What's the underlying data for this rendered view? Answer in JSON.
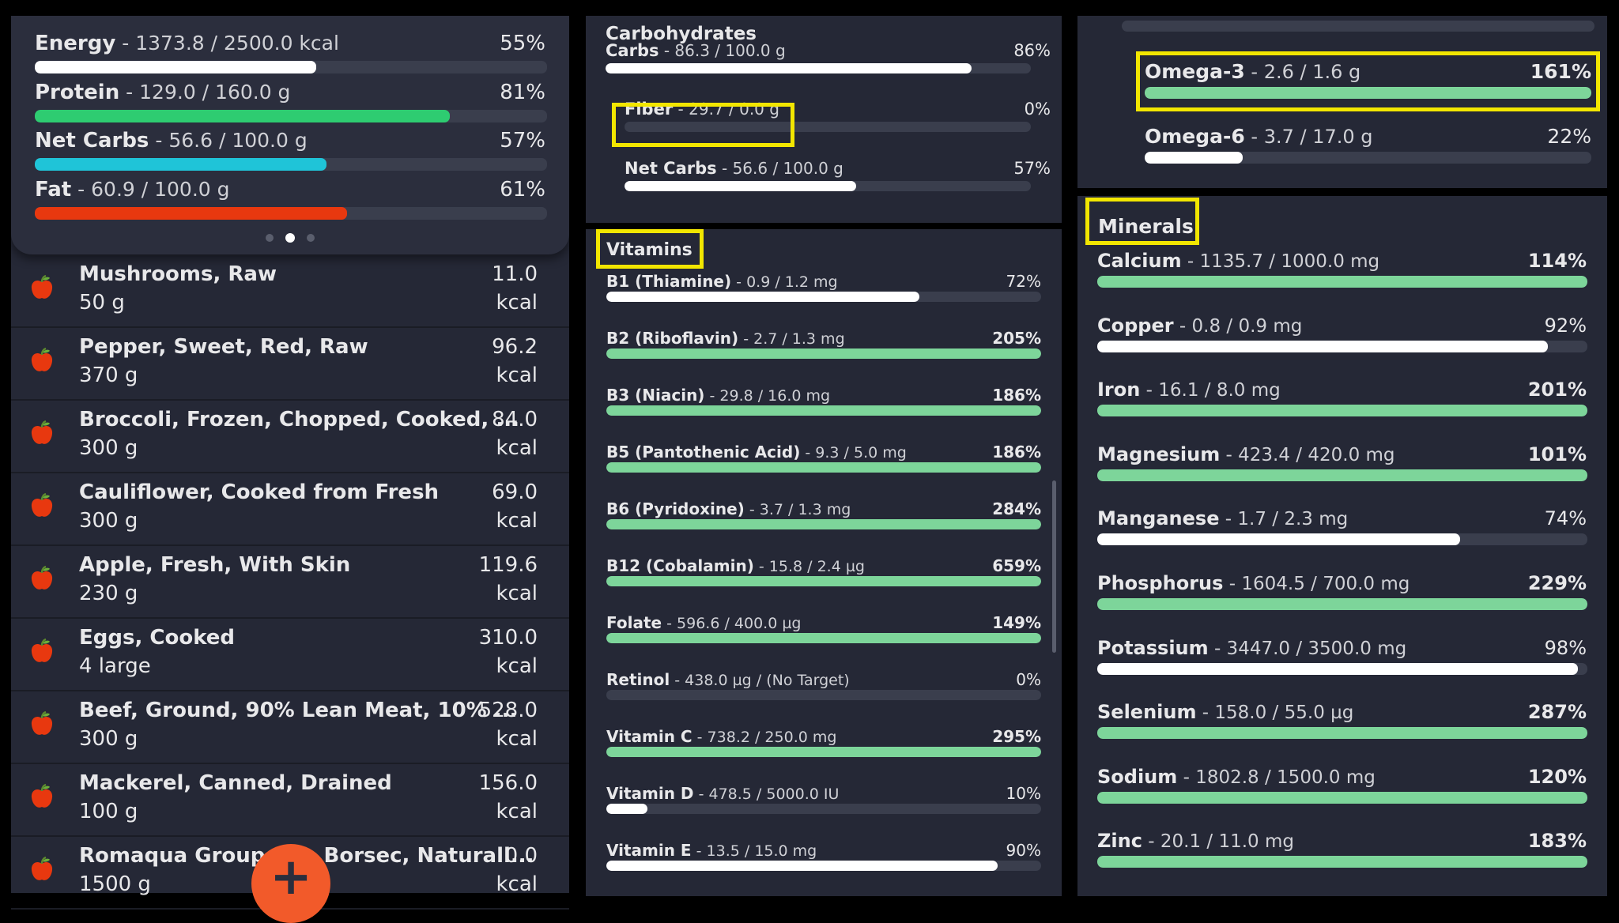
{
  "colors": {
    "white": "#ffffff",
    "green": "#2ecc71",
    "cyan": "#1fc4d8",
    "red": "#e8380f",
    "mint": "#7dd59a",
    "fab": "#f25a2a"
  },
  "summary": {
    "rows": [
      {
        "name": "Energy",
        "detail": " - 1373.8 / 2500.0 kcal",
        "pct": "55%",
        "value": 0.55,
        "color": "white"
      },
      {
        "name": "Protein",
        "detail": " - 129.0 / 160.0 g",
        "pct": "81%",
        "value": 0.81,
        "color": "green"
      },
      {
        "name": "Net Carbs",
        "detail": " - 56.6 / 100.0 g",
        "pct": "57%",
        "value": 0.57,
        "color": "cyan"
      },
      {
        "name": "Fat",
        "detail": " - 60.9 / 100.0 g",
        "pct": "61%",
        "value": 0.61,
        "color": "red"
      }
    ]
  },
  "foods": [
    {
      "name": "Mushrooms, Raw",
      "qty": "50 g",
      "cal": "11.0",
      "unit": "kcal"
    },
    {
      "name": "Pepper, Sweet, Red, Raw",
      "qty": "370 g",
      "cal": "96.2",
      "unit": "kcal"
    },
    {
      "name": "Broccoli, Frozen, Chopped, Cooked, ...",
      "qty": "300 g",
      "cal": "84.0",
      "unit": "kcal"
    },
    {
      "name": "Cauliflower, Cooked from Fresh",
      "qty": "300 g",
      "cal": "69.0",
      "unit": "kcal"
    },
    {
      "name": "Apple, Fresh, With Skin",
      "qty": "230 g",
      "cal": "119.6",
      "unit": "kcal"
    },
    {
      "name": "Eggs, Cooked",
      "qty": "4 large",
      "cal": "310.0",
      "unit": "kcal"
    },
    {
      "name": "Beef, Ground, 90% Lean Meat, 10% ...",
      "qty": "300 g",
      "cal": "528.0",
      "unit": "kcal"
    },
    {
      "name": "Mackerel, Canned, Drained",
      "qty": "100 g",
      "cal": "156.0",
      "unit": "kcal"
    },
    {
      "name": "Romaqua Group S.a. Borsec, Naturall...",
      "qty": "1500 g",
      "cal": "0.0",
      "unit": "kcal"
    }
  ],
  "fab": {
    "symbol": "+"
  },
  "carbs": {
    "title": "Carbohydrates",
    "rows": [
      {
        "name": "Carbs",
        "detail": " - 86.3 / 100.0 g",
        "pct": "86%",
        "value": 0.86,
        "color": "white"
      },
      {
        "name": "Fiber",
        "detail": " - 29.7 / 0.0 g",
        "pct": "0%",
        "value": 0,
        "color": "white"
      },
      {
        "name": "Net Carbs",
        "detail": " - 56.6 / 100.0 g",
        "pct": "57%",
        "value": 0.57,
        "color": "white"
      }
    ]
  },
  "vitamins": {
    "title": "Vitamins",
    "rows": [
      {
        "name": "B1 (Thiamine)",
        "detail": " - 0.9 / 1.2 mg",
        "pct": "72%",
        "value": 0.72,
        "color": "white",
        "bold": false
      },
      {
        "name": "B2 (Riboflavin)",
        "detail": " - 2.7 / 1.3 mg",
        "pct": "205%",
        "value": 1,
        "color": "mint",
        "bold": true
      },
      {
        "name": "B3 (Niacin)",
        "detail": " - 29.8 / 16.0 mg",
        "pct": "186%",
        "value": 1,
        "color": "mint",
        "bold": true
      },
      {
        "name": "B5 (Pantothenic Acid)",
        "detail": " - 9.3 / 5.0 mg",
        "pct": "186%",
        "value": 1,
        "color": "mint",
        "bold": true
      },
      {
        "name": "B6 (Pyridoxine)",
        "detail": " - 3.7 / 1.3 mg",
        "pct": "284%",
        "value": 1,
        "color": "mint",
        "bold": true
      },
      {
        "name": "B12 (Cobalamin)",
        "detail": " - 15.8 / 2.4 µg",
        "pct": "659%",
        "value": 1,
        "color": "mint",
        "bold": true
      },
      {
        "name": "Folate",
        "detail": " - 596.6 / 400.0 µg",
        "pct": "149%",
        "value": 1,
        "color": "mint",
        "bold": true
      },
      {
        "name": "Retinol",
        "detail": " - 438.0 µg / (No Target)",
        "pct": "0%",
        "value": 0,
        "color": "white",
        "bold": false
      },
      {
        "name": "Vitamin C",
        "detail": " - 738.2 / 250.0 mg",
        "pct": "295%",
        "value": 1,
        "color": "mint",
        "bold": true
      },
      {
        "name": "Vitamin D",
        "detail": " - 478.5 / 5000.0 IU",
        "pct": "10%",
        "value": 0.095,
        "color": "white",
        "bold": false
      },
      {
        "name": "Vitamin E",
        "detail": " - 13.5 / 15.0 mg",
        "pct": "90%",
        "value": 0.9,
        "color": "white",
        "bold": false
      }
    ]
  },
  "omega": {
    "rows": [
      {
        "name": "Omega-3",
        "detail": " - 2.6 / 1.6 g",
        "pct": "161%",
        "value": 1,
        "color": "mint",
        "bold": true
      },
      {
        "name": "Omega-6",
        "detail": " - 3.7 / 17.0 g",
        "pct": "22%",
        "value": 0.22,
        "color": "white",
        "bold": false
      }
    ]
  },
  "minerals": {
    "title": "Minerals",
    "rows": [
      {
        "name": "Calcium",
        "detail": " - 1135.7 / 1000.0 mg",
        "pct": "114%",
        "value": 1,
        "color": "mint",
        "bold": true
      },
      {
        "name": "Copper",
        "detail": " - 0.8 / 0.9 mg",
        "pct": "92%",
        "value": 0.92,
        "color": "white",
        "bold": false
      },
      {
        "name": "Iron",
        "detail": " - 16.1 / 8.0 mg",
        "pct": "201%",
        "value": 1,
        "color": "mint",
        "bold": true
      },
      {
        "name": "Magnesium",
        "detail": " - 423.4 / 420.0 mg",
        "pct": "101%",
        "value": 1,
        "color": "mint",
        "bold": true
      },
      {
        "name": "Manganese",
        "detail": " - 1.7 / 2.3 mg",
        "pct": "74%",
        "value": 0.74,
        "color": "white",
        "bold": false
      },
      {
        "name": "Phosphorus",
        "detail": " - 1604.5 / 700.0 mg",
        "pct": "229%",
        "value": 1,
        "color": "mint",
        "bold": true
      },
      {
        "name": "Potassium",
        "detail": " - 3447.0 / 3500.0 mg",
        "pct": "98%",
        "value": 0.98,
        "color": "white",
        "bold": false
      },
      {
        "name": "Selenium",
        "detail": " - 158.0 / 55.0 µg",
        "pct": "287%",
        "value": 1,
        "color": "mint",
        "bold": true
      },
      {
        "name": "Sodium",
        "detail": " - 1802.8 / 1500.0 mg",
        "pct": "120%",
        "value": 1,
        "color": "mint",
        "bold": true
      },
      {
        "name": "Zinc",
        "detail": " - 20.1 / 11.0 mg",
        "pct": "183%",
        "value": 1,
        "color": "mint",
        "bold": true
      }
    ]
  }
}
